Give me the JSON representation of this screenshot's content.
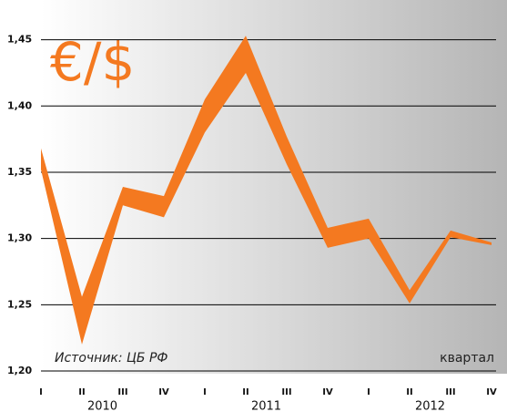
{
  "chart_data": {
    "type": "band",
    "title": "€/$",
    "source": "Источник: ЦБ РФ",
    "x_label": "квартал",
    "categories": [
      "I",
      "II",
      "III",
      "IV",
      "I",
      "II",
      "III",
      "IV",
      "I",
      "II",
      "III",
      "IV"
    ],
    "years": [
      "2010",
      "2011",
      "2012"
    ],
    "series": [
      {
        "color": "#f47920",
        "values": [
          1.368,
          1.256,
          1.339,
          1.332,
          1.405,
          1.453,
          1.377,
          1.308,
          1.315,
          1.261,
          1.306,
          1.297
        ]
      },
      {
        "color": "#f47920",
        "values": [
          1.352,
          1.22,
          1.325,
          1.316,
          1.38,
          1.425,
          1.356,
          1.293,
          1.3,
          1.251,
          1.301,
          1.295
        ]
      }
    ],
    "ylim": [
      1.2,
      1.48
    ],
    "yticks": [
      {
        "value": 1.2,
        "label": "1,20"
      },
      {
        "value": 1.25,
        "label": "1,25"
      },
      {
        "value": 1.3,
        "label": "1,30"
      },
      {
        "value": 1.35,
        "label": "1,35"
      },
      {
        "value": 1.4,
        "label": "1,40"
      },
      {
        "value": 1.45,
        "label": "1,45"
      }
    ],
    "grid": true
  }
}
